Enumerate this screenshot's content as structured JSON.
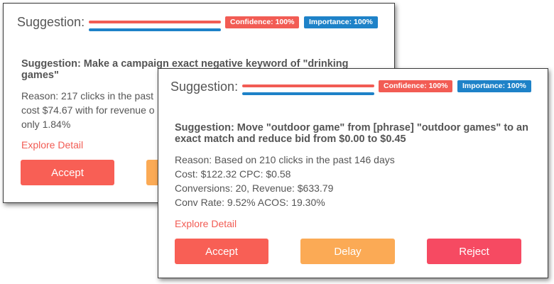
{
  "card_back": {
    "header_label": "Suggestion:",
    "confidence_badge": "Confidence: 100%",
    "importance_badge": "Importance: 100%",
    "title_line1": "Suggestion: Make a campaign exact negative keyword of \"drinking",
    "title_line2": "games\"",
    "reason_lines": [
      "Reason: 217 clicks in the past",
      "cost $74.67 with for revenue o",
      "only 1.84%"
    ],
    "explore_label": "Explore Detail",
    "accept_label": "Accept"
  },
  "card_front": {
    "header_label": "Suggestion:",
    "confidence_badge": "Confidence: 100%",
    "importance_badge": "Importance: 100%",
    "title_line1": "Suggestion: Move \"outdoor game\" from [phrase] \"outdoor games\" to an",
    "title_line2": "exact match and reduce bid from $0.00 to $0.45",
    "reason_lines": [
      "Reason: Based on 210 clicks in the past 146 days",
      "Cost: $122.32 CPC: $0.58",
      "Conversions: 20, Revenue: $633.79",
      "Conv Rate: 9.52% ACOS: 19.30%"
    ],
    "explore_label": "Explore Detail",
    "accept_label": "Accept",
    "delay_label": "Delay",
    "reject_label": "Reject"
  },
  "colors": {
    "accent_red": "#f25c54",
    "accent_blue": "#1e82c8",
    "delay_orange": "#fbaa55",
    "reject_pink": "#f64a62"
  }
}
